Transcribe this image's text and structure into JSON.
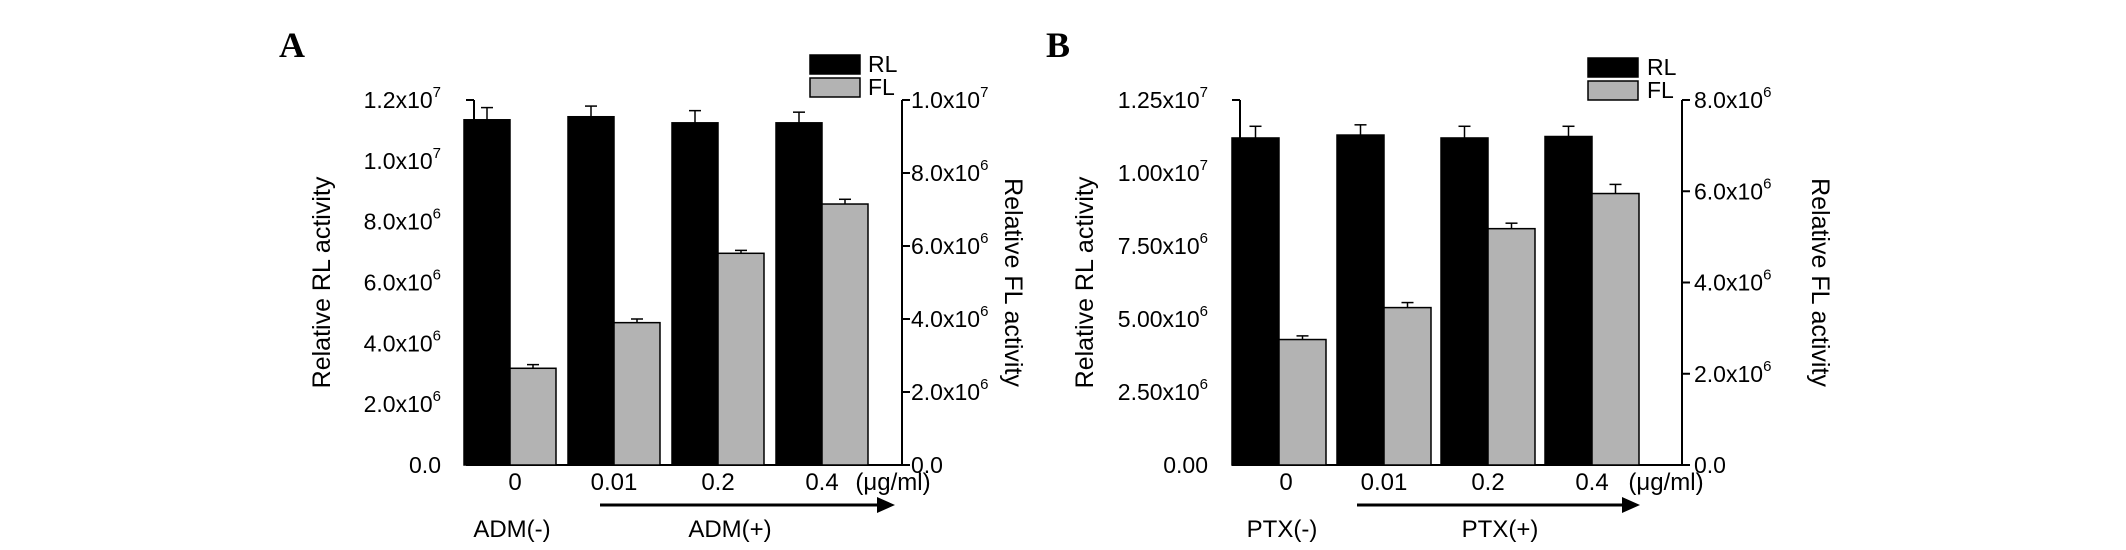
{
  "chart_data": [
    {
      "panel_label": "A",
      "type": "bar",
      "categories": [
        "0",
        "0.01",
        "0.2",
        "0.4"
      ],
      "unit_label": "(μg/ml)",
      "group_minus": "ADM(-)",
      "group_plus": "ADM(+)",
      "ylabel_left": "Relative RL activity",
      "ylabel_right": "Relative FL activity",
      "ylim_left": [
        0,
        12000000
      ],
      "ylim_right": [
        0,
        10000000
      ],
      "yticks_left": [
        {
          "value": 0,
          "mant": "0.0",
          "exp": ""
        },
        {
          "value": 2000000,
          "mant": "2.0x10",
          "exp": "6"
        },
        {
          "value": 4000000,
          "mant": "4.0x10",
          "exp": "6"
        },
        {
          "value": 6000000,
          "mant": "6.0x10",
          "exp": "6"
        },
        {
          "value": 8000000,
          "mant": "8.0x10",
          "exp": "6"
        },
        {
          "value": 10000000,
          "mant": "1.0x10",
          "exp": "7"
        },
        {
          "value": 12000000,
          "mant": "1.2x10",
          "exp": "7"
        }
      ],
      "yticks_right": [
        {
          "value": 0,
          "mant": "0.0",
          "exp": ""
        },
        {
          "value": 2000000,
          "mant": "2.0x10",
          "exp": "6"
        },
        {
          "value": 4000000,
          "mant": "4.0x10",
          "exp": "6"
        },
        {
          "value": 6000000,
          "mant": "6.0x10",
          "exp": "6"
        },
        {
          "value": 8000000,
          "mant": "8.0x10",
          "exp": "6"
        },
        {
          "value": 10000000,
          "mant": "1.0x10",
          "exp": "7"
        }
      ],
      "series": [
        {
          "name": "RL",
          "axis": "left",
          "color": "#000000",
          "values": [
            11350000,
            11450000,
            11250000,
            11250000
          ],
          "errors": [
            400000,
            350000,
            400000,
            350000
          ]
        },
        {
          "name": "FL",
          "axis": "right",
          "color": "#b3b3b3",
          "values": [
            2650000,
            3900000,
            5800000,
            7150000
          ],
          "errors": [
            100000,
            100000,
            80000,
            130000
          ]
        }
      ],
      "legend_position": "top-right"
    },
    {
      "panel_label": "B",
      "type": "bar",
      "categories": [
        "0",
        "0.01",
        "0.2",
        "0.4"
      ],
      "unit_label": "(μg/ml)",
      "group_minus": "PTX(-)",
      "group_plus": "PTX(+)",
      "ylabel_left": "Relative RL activity",
      "ylabel_right": "Relative FL activity",
      "ylim_left": [
        0,
        12500000
      ],
      "ylim_right": [
        0,
        8000000
      ],
      "yticks_left": [
        {
          "value": 0,
          "mant": "0.00",
          "exp": ""
        },
        {
          "value": 2500000,
          "mant": "2.50x10",
          "exp": "6"
        },
        {
          "value": 5000000,
          "mant": "5.00x10",
          "exp": "6"
        },
        {
          "value": 7500000,
          "mant": "7.50x10",
          "exp": "6"
        },
        {
          "value": 10000000,
          "mant": "1.00x10",
          "exp": "7"
        },
        {
          "value": 12500000,
          "mant": "1.25x10",
          "exp": "7"
        }
      ],
      "yticks_right": [
        {
          "value": 0,
          "mant": "0.0",
          "exp": ""
        },
        {
          "value": 2000000,
          "mant": "2.0x10",
          "exp": "6"
        },
        {
          "value": 4000000,
          "mant": "4.0x10",
          "exp": "6"
        },
        {
          "value": 6000000,
          "mant": "6.0x10",
          "exp": "6"
        },
        {
          "value": 8000000,
          "mant": "8.0x10",
          "exp": "6"
        }
      ],
      "series": [
        {
          "name": "RL",
          "axis": "left",
          "color": "#000000",
          "values": [
            11200000,
            11300000,
            11200000,
            11250000
          ],
          "errors": [
            400000,
            350000,
            400000,
            350000
          ]
        },
        {
          "name": "FL",
          "axis": "right",
          "color": "#b3b3b3",
          "values": [
            2750000,
            3450000,
            5180000,
            5950000
          ],
          "errors": [
            80000,
            110000,
            120000,
            200000
          ]
        }
      ],
      "legend_position": "top-right"
    }
  ]
}
